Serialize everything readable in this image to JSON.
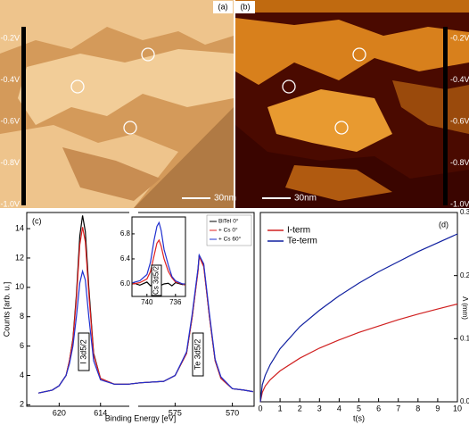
{
  "images": {
    "panels": [
      {
        "label": "(a)",
        "scale_bar": "30nm"
      },
      {
        "label": "(b)",
        "scale_bar": "30nm"
      }
    ],
    "bias_labels": [
      "-0.2V",
      "-0.4V",
      "-0.6V",
      "-0.8V",
      "-1.0V"
    ]
  },
  "chart_data": [
    {
      "type": "line",
      "label": "(c)",
      "xlabel": "Binding Energy [eV]",
      "ylabel": "Counts [arb. u.]",
      "xlim": [
        624.7,
        568.1
      ],
      "x_break": [
        609.7,
        578.3
      ],
      "ylim": [
        1.9,
        15.1
      ],
      "xticks": [
        620,
        614,
        575,
        570
      ],
      "yticks": [
        2,
        4,
        6,
        8,
        10,
        12,
        14
      ],
      "x": [
        623,
        621,
        620,
        619,
        618.5,
        618,
        617.5,
        617,
        616.6,
        616.2,
        615.7,
        615,
        614,
        612,
        610,
        578,
        576,
        575,
        574,
        573.5,
        573,
        572.9,
        572.5,
        572,
        571.5,
        571,
        570,
        569,
        568.2
      ],
      "series": [
        {
          "name": "BiTeI 0°",
          "color": "#000000",
          "values": [
            2.8,
            3.0,
            3.3,
            4.0,
            5.0,
            6.5,
            9.5,
            13.5,
            14.9,
            13.8,
            10,
            5.5,
            3.8,
            3.4,
            3.4,
            3.5,
            3.6,
            4.0,
            5.5,
            8,
            11.2,
            12.2,
            11.5,
            8,
            5,
            3.8,
            3.1,
            3.0,
            2.9
          ]
        },
        {
          "name": "+ Cs 0°",
          "color": "#e02020",
          "values": [
            2.8,
            3.0,
            3.3,
            4.0,
            5.0,
            6.4,
            9.2,
            12.9,
            14.1,
            13.1,
            9.6,
            5.4,
            3.8,
            3.4,
            3.4,
            3.5,
            3.6,
            4.0,
            5.5,
            8,
            11.1,
            12.1,
            11.4,
            8,
            5,
            3.8,
            3.1,
            3.0,
            2.9
          ]
        },
        {
          "name": "+ Cs 60°",
          "color": "#2030d0",
          "values": [
            2.8,
            3.0,
            3.3,
            4.0,
            4.8,
            6.0,
            8.0,
            10.3,
            11.1,
            10.5,
            8.0,
            5.0,
            3.7,
            3.4,
            3.4,
            3.5,
            3.6,
            4.0,
            5.6,
            8.2,
            11.3,
            12.2,
            11.6,
            8.2,
            5.1,
            3.9,
            3.1,
            3.0,
            2.9
          ]
        }
      ],
      "annotations": [
        "I 3d5/2",
        "Te 3d5/2"
      ]
    },
    {
      "type": "line",
      "annotation": "Cs 3d5/2",
      "xlim": [
        742.1,
        734.6
      ],
      "ylim": [
        5.8,
        7.07
      ],
      "xticks": [
        740,
        736
      ],
      "yticks": [
        {
          "value": 6.0,
          "label": "6.0"
        },
        6.4,
        6.8
      ],
      "x": [
        742,
        741,
        740,
        739.5,
        739,
        738.6,
        738.3,
        738,
        737.6,
        737,
        736.5,
        736,
        735,
        734.7
      ],
      "series": [
        {
          "name": "BiTeI 0°",
          "color": "#000000",
          "values": [
            6.02,
            5.98,
            6.03,
            5.97,
            6.01,
            5.96,
            6.02,
            5.98,
            6.0,
            6.01,
            5.97,
            6.02,
            5.99,
            6.0
          ]
        },
        {
          "name": "+ Cs 0°",
          "color": "#e02020",
          "values": [
            6.0,
            6.02,
            6.08,
            6.2,
            6.45,
            6.65,
            6.7,
            6.6,
            6.4,
            6.2,
            6.1,
            6.03,
            6.0,
            5.98
          ]
        },
        {
          "name": "+ Cs 60°",
          "color": "#2030d0",
          "values": [
            6.02,
            6.05,
            6.15,
            6.35,
            6.7,
            6.92,
            6.98,
            6.85,
            6.55,
            6.3,
            6.12,
            6.05,
            6.0,
            6.0
          ]
        }
      ]
    },
    {
      "type": "line",
      "label": "(d)",
      "xlabel": "t(s)",
      "ylabel": "Λ (mm)",
      "xlim": [
        0,
        10
      ],
      "ylim": [
        0,
        0.3
      ],
      "xticks": [
        0,
        1,
        2,
        3,
        4,
        5,
        6,
        7,
        8,
        9,
        10
      ],
      "yticks": [
        {
          "value": 0,
          "label": "0.0"
        },
        0.1,
        0.2,
        0.3
      ],
      "x": [
        0,
        0.1,
        0.25,
        0.5,
        1,
        2,
        3,
        4,
        5,
        6,
        7,
        8,
        9,
        10
      ],
      "series": [
        {
          "name": "I-term",
          "color": "#d02020",
          "values": [
            0,
            0.015,
            0.025,
            0.035,
            0.049,
            0.069,
            0.085,
            0.098,
            0.11,
            0.12,
            0.13,
            0.139,
            0.147,
            0.155
          ]
        },
        {
          "name": "Te-term",
          "color": "#1020a0",
          "values": [
            0,
            0.027,
            0.042,
            0.059,
            0.084,
            0.119,
            0.145,
            0.168,
            0.188,
            0.206,
            0.222,
            0.238,
            0.252,
            0.266
          ]
        }
      ]
    }
  ]
}
